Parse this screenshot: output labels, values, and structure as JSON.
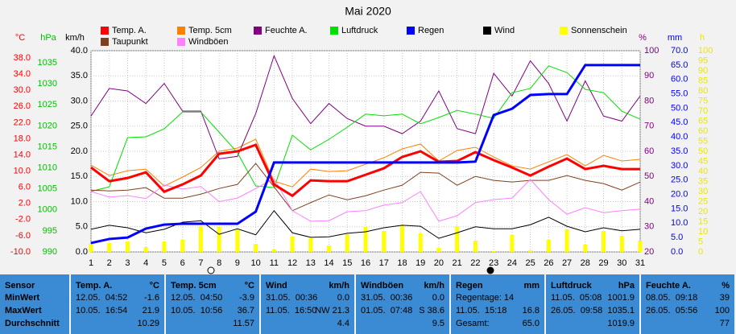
{
  "chart_data": {
    "type": "line",
    "title": "Mai 2020",
    "x": [
      1,
      2,
      3,
      4,
      5,
      6,
      7,
      8,
      9,
      10,
      11,
      12,
      13,
      14,
      15,
      16,
      17,
      18,
      19,
      20,
      21,
      22,
      23,
      24,
      25,
      26,
      27,
      28,
      29,
      30,
      31
    ],
    "xlim": [
      1,
      31
    ],
    "xticks": [
      1,
      2,
      3,
      4,
      5,
      6,
      7,
      8,
      9,
      10,
      11,
      12,
      13,
      14,
      15,
      16,
      17,
      18,
      19,
      20,
      21,
      22,
      23,
      24,
      25,
      26,
      27,
      28,
      29,
      30,
      31
    ],
    "grid": true,
    "axes": [
      {
        "unit": "°C",
        "color": "#ff0000",
        "lim": [
          -10,
          39.8
        ],
        "ticks": [
          {
            "value": 38,
            "label": "38.0"
          },
          {
            "value": 34,
            "label": "34.0"
          },
          {
            "value": 30,
            "label": "30.0"
          },
          {
            "value": 26,
            "label": "26.0"
          },
          {
            "value": 22,
            "label": "22.0"
          },
          {
            "value": 18,
            "label": "18.0"
          },
          {
            "value": 14,
            "label": "14.0"
          },
          {
            "value": 10,
            "label": "10.0"
          },
          {
            "value": 6,
            "label": "6.0"
          },
          {
            "value": 2,
            "label": "2.0"
          },
          {
            "value": -2,
            "label": "-2.0"
          },
          {
            "value": -6,
            "label": "-6.0"
          },
          {
            "value": -10,
            "label": "-10.0"
          }
        ]
      },
      {
        "unit": "hPa",
        "color": "#00c000",
        "lim": [
          990,
          1037.9
        ],
        "ticks": [
          1035,
          1030,
          1025,
          1020,
          1015,
          1010,
          1005,
          1000,
          995,
          990
        ]
      },
      {
        "unit": "km/h",
        "color": "#000000",
        "lim": [
          0,
          40
        ],
        "ticks": [
          {
            "value": 40,
            "label": "40.0"
          },
          {
            "value": 35,
            "label": "35.0"
          },
          {
            "value": 30,
            "label": "30.0"
          },
          {
            "value": 25,
            "label": "25.0"
          },
          {
            "value": 20,
            "label": "20.0"
          },
          {
            "value": 15,
            "label": "15.0"
          },
          {
            "value": 10,
            "label": "10.0"
          },
          {
            "value": 5,
            "label": "5.0"
          },
          {
            "value": 0,
            "label": "0.0"
          }
        ],
        "grid": true
      },
      {
        "unit": "%",
        "color": "#800080",
        "lim": [
          20,
          100
        ],
        "ticks": [
          100,
          90,
          80,
          70,
          60,
          50,
          40,
          30,
          20
        ]
      },
      {
        "unit": "mm",
        "color": "#0000ff",
        "lim": [
          0,
          70
        ],
        "ticks": [
          {
            "value": 70,
            "label": "70.0"
          },
          {
            "value": 65,
            "label": "65.0"
          },
          {
            "value": 60,
            "label": "60.0"
          },
          {
            "value": 55,
            "label": "55.0"
          },
          {
            "value": 50,
            "label": "50.0"
          },
          {
            "value": 45,
            "label": "45.0"
          },
          {
            "value": 40,
            "label": "40.0"
          },
          {
            "value": 35,
            "label": "35.0"
          },
          {
            "value": 30,
            "label": "30.0"
          },
          {
            "value": 25,
            "label": "25.0"
          },
          {
            "value": 20,
            "label": "20.0"
          },
          {
            "value": 15,
            "label": "15.0"
          },
          {
            "value": 10,
            "label": "10.0"
          },
          {
            "value": 5,
            "label": "5.0"
          },
          {
            "value": 0,
            "label": "0.0"
          }
        ]
      },
      {
        "unit": "h",
        "color": "#e8e800",
        "lim": [
          0,
          100
        ],
        "ticks": [
          100,
          95,
          90,
          85,
          80,
          75,
          70,
          65,
          60,
          55,
          50,
          45,
          40,
          35,
          30,
          25,
          20,
          15,
          10,
          5,
          0
        ]
      }
    ],
    "series": [
      {
        "name": "Temp. A.",
        "color": "#ff0000",
        "type": "line",
        "axis": 0,
        "width": 3,
        "values": [
          10.9,
          7.5,
          8.3,
          9.7,
          4.9,
          6.7,
          8.9,
          14.3,
          14.9,
          16.5,
          6.7,
          3.9,
          7.7,
          7.5,
          7.5,
          9.1,
          10.7,
          13.5,
          14.9,
          12.3,
          12.5,
          14.7,
          12.7,
          10.9,
          8.9,
          11.1,
          13.1,
          10.5,
          11.3,
          10.5,
          10.5
        ]
      },
      {
        "name": "Temp. 5cm",
        "color": "#ff8000",
        "type": "line",
        "axis": 0,
        "width": 1,
        "values": [
          11.5,
          8.9,
          10.1,
          10.5,
          6.3,
          8.5,
          10.9,
          14.9,
          15.7,
          17.9,
          7.5,
          6.1,
          10.5,
          9.9,
          10.1,
          11.7,
          13.3,
          15.5,
          16.7,
          12.5,
          15.1,
          15.9,
          13.5,
          11.3,
          10.5,
          12.3,
          14.1,
          11.3,
          13.9,
          12.5,
          12.9
        ]
      },
      {
        "name": "Feuchte A.",
        "color": "#800080",
        "type": "line",
        "axis": 3,
        "width": 1,
        "values": [
          74,
          85,
          84,
          79,
          87,
          76,
          76,
          57,
          58,
          75,
          98,
          81,
          71,
          79,
          73,
          70,
          70,
          67,
          72,
          84,
          69,
          67,
          91,
          82,
          96,
          87,
          72,
          88,
          74,
          72,
          82
        ]
      },
      {
        "name": "Luftdruck",
        "color": "#00e000",
        "type": "line",
        "axis": 1,
        "width": 1,
        "values": [
          1004.4,
          1005.5,
          1017.2,
          1017.4,
          1019.3,
          1023.3,
          1023.3,
          1018.5,
          1013.6,
          1005.7,
          1005.3,
          1017.8,
          1014.3,
          1016.8,
          1019.7,
          1022.8,
          1022.4,
          1022.8,
          1020.5,
          1022,
          1023.7,
          1022.8,
          1021.8,
          1027.9,
          1028.9,
          1034.3,
          1032.7,
          1028.7,
          1027.9,
          1023.5,
          1021.6
        ]
      },
      {
        "name": "Regen",
        "color": "#0000ff",
        "type": "line",
        "axis": 4,
        "width": 3,
        "values": [
          3.1,
          4.5,
          5,
          8.1,
          9.5,
          9.8,
          9.8,
          9.8,
          9.8,
          14,
          31.1,
          31.1,
          31.1,
          31.1,
          31.1,
          31.1,
          31.1,
          31.1,
          31.1,
          31.1,
          31.1,
          31.4,
          47.6,
          49.8,
          54.6,
          54.9,
          54.9,
          65,
          65,
          65,
          65
        ]
      },
      {
        "name": "Wind",
        "color": "#000000",
        "type": "line",
        "axis": 2,
        "width": 1,
        "values": [
          4.5,
          5.3,
          4.8,
          3.8,
          4.5,
          5.9,
          6.2,
          3.5,
          4.6,
          3.4,
          8.2,
          3.8,
          2.9,
          3,
          3.7,
          4,
          4.8,
          5.3,
          5.1,
          2.7,
          3.8,
          5,
          4.6,
          4.6,
          5.4,
          6.9,
          5.1,
          4,
          4.8,
          4.2,
          4.5
        ]
      },
      {
        "name": "Sonnenschein",
        "color": "#ffff00",
        "type": "bar",
        "axis": 5,
        "values": [
          4,
          4.4,
          5.2,
          2.4,
          5.2,
          6,
          12.8,
          12.4,
          10.8,
          4,
          1.2,
          7.6,
          6.8,
          3.2,
          8.8,
          12.4,
          10.4,
          13.2,
          9.2,
          2,
          12.8,
          5.6,
          0.4,
          8.4,
          0.8,
          6,
          11.2,
          3.6,
          10.4,
          8,
          5.6
        ]
      },
      {
        "name": "Taupunkt",
        "color": "#804020",
        "type": "line",
        "axis": 0,
        "width": 1,
        "values": [
          5.3,
          5.1,
          5.3,
          5.9,
          3.3,
          3.3,
          4.3,
          5.7,
          6.7,
          11.9,
          6.1,
          0.2,
          2.2,
          4.1,
          2.9,
          3.9,
          5.3,
          6.5,
          9.7,
          9.5,
          6.5,
          8.7,
          7.7,
          7.3,
          7.7,
          7.7,
          8.9,
          7.7,
          6.9,
          5.3,
          7.3
        ]
      },
      {
        "name": "Windböen",
        "color": "#ff80ff",
        "type": "line",
        "axis": 2,
        "width": 1,
        "values": [
          12,
          10.9,
          11.2,
          10.6,
          13.3,
          12.5,
          13,
          10,
          10.7,
          12.6,
          14.6,
          8.2,
          6.1,
          6.2,
          8,
          8.2,
          9.3,
          9.8,
          12,
          6.1,
          7.2,
          9.8,
          10.4,
          10.7,
          14.4,
          10.4,
          7.5,
          8.8,
          7.8,
          8.2,
          8.5
        ]
      }
    ]
  },
  "table": {
    "row_labels": [
      "Sensor",
      "MinWert",
      "MaxWert",
      "Durchschnitt"
    ],
    "columns": [
      {
        "title": "Temp. A.",
        "unit": "°C",
        "rows": [
          [
            "12.05.  04:52",
            "-1.6"
          ],
          [
            "10.05.  16:54",
            "21.9"
          ],
          [
            "",
            "10.29"
          ]
        ]
      },
      {
        "title": "Temp. 5cm",
        "unit": "°C",
        "rows": [
          [
            "12.05.  04:50",
            "-3.9"
          ],
          [
            "10.05.  10:56",
            "36.7"
          ],
          [
            "",
            "11.57"
          ]
        ]
      },
      {
        "title": "Wind",
        "unit": "km/h",
        "rows": [
          [
            "31.05.  00:36",
            "0.0"
          ],
          [
            "11.05.  16:50",
            "NW 21.3"
          ],
          [
            "",
            "4.4"
          ]
        ]
      },
      {
        "title": "Windböen",
        "unit": "km/h",
        "rows": [
          [
            "31.05.  00:36",
            "0.0"
          ],
          [
            "01.05.  07:48",
            "S 38.6"
          ],
          [
            "",
            "9.5"
          ]
        ]
      },
      {
        "title": "Regen",
        "unit": "mm",
        "rows": [
          [
            "Regentage: 14",
            ""
          ],
          [
            "11.05.  15:18",
            "16.8"
          ],
          [
            "Gesamt:",
            "65.0"
          ]
        ]
      },
      {
        "title": "Luftdruck",
        "unit": "hPa",
        "rows": [
          [
            "11.05.  05:08",
            "1001.9"
          ],
          [
            "26.05.  09:58",
            "1035.1"
          ],
          [
            "",
            "1019.9"
          ]
        ]
      },
      {
        "title": "Feuchte A.",
        "unit": "%",
        "rows": [
          [
            "08.05.  09:18",
            "39"
          ],
          [
            "26.05.  05:56",
            "100"
          ],
          [
            "",
            "77"
          ]
        ]
      }
    ]
  }
}
